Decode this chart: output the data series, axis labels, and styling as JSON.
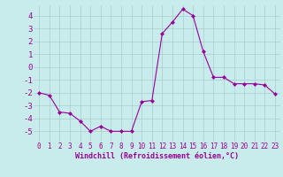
{
  "x": [
    0,
    1,
    2,
    3,
    4,
    5,
    6,
    7,
    8,
    9,
    10,
    11,
    12,
    13,
    14,
    15,
    16,
    17,
    18,
    19,
    20,
    21,
    22,
    23
  ],
  "y": [
    -2.0,
    -2.2,
    -3.5,
    -3.6,
    -4.2,
    -5.0,
    -4.6,
    -5.0,
    -5.0,
    -5.0,
    -2.7,
    -2.6,
    2.6,
    3.5,
    4.5,
    4.0,
    1.2,
    -0.8,
    -0.8,
    -1.3,
    -1.3,
    -1.3,
    -1.4,
    -2.1
  ],
  "line_color": "#990099",
  "marker": "D",
  "marker_size": 2,
  "bg_color": "#c8ecec",
  "grid_color": "#aacccc",
  "xlabel": "Windchill (Refroidissement éolien,°C)",
  "xlabel_color": "#990099",
  "tick_color": "#990099",
  "ylim": [
    -5.8,
    4.8
  ],
  "xlim": [
    -0.5,
    23.5
  ],
  "yticks": [
    -5,
    -4,
    -3,
    -2,
    -1,
    0,
    1,
    2,
    3,
    4
  ],
  "xticks": [
    0,
    1,
    2,
    3,
    4,
    5,
    6,
    7,
    8,
    9,
    10,
    11,
    12,
    13,
    14,
    15,
    16,
    17,
    18,
    19,
    20,
    21,
    22,
    23
  ],
  "tick_fontsize": 5.5,
  "xlabel_fontsize": 6.0,
  "ytick_fontsize": 6.5
}
